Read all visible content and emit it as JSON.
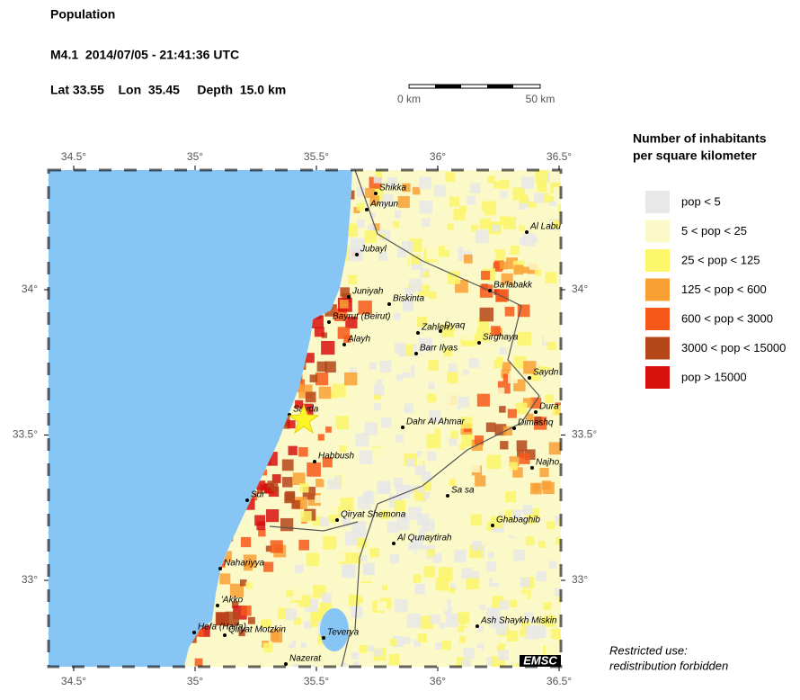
{
  "header": {
    "title": "Population",
    "event": "M4.1  2014/07/05 - 21:41:36 UTC",
    "location": "Lat 33.55    Lon  35.45     Depth  15.0 km"
  },
  "scale_bar": {
    "start": "0 km",
    "end": "50 km"
  },
  "map": {
    "lon_ticks": [
      {
        "value": 34.5,
        "label": "34.5°"
      },
      {
        "value": 35,
        "label": "35°"
      },
      {
        "value": 35.5,
        "label": "35.5°"
      },
      {
        "value": 36,
        "label": "36°"
      },
      {
        "value": 36.5,
        "label": "36.5°"
      }
    ],
    "lat_ticks": [
      {
        "value": 33,
        "label": "33°"
      },
      {
        "value": 33.5,
        "label": "33.5°"
      },
      {
        "value": 34,
        "label": "34°"
      }
    ],
    "cities": [
      "Shikka",
      "Amyun",
      "Jubayl",
      "Juniyah",
      "Biskinta",
      "Bayrut (Beirut)",
      "Alayh",
      "Zahleh",
      "Dyaq",
      "Barr Ilyas",
      "Sirghaya",
      "Ba'labakk",
      "Al Labu",
      "Sayda",
      "Dahr Al Ahmar",
      "Dura",
      "Dimashq",
      "Saydn",
      "Najho",
      "Habbush",
      "Sur",
      "Sa sa",
      "Qiryat Shemona",
      "Ghabaghib",
      "Al Qunaytirah",
      "Nahariyya",
      "'Akko",
      "Hefa (Haifa)",
      "Qiryat Motzkin",
      "Teverya",
      "Ash Shaykh Miskin",
      "Nazerat"
    ],
    "logo": "EMSC"
  },
  "legend": {
    "title": [
      "Number of inhabitants",
      "per square kilometer"
    ],
    "items": [
      {
        "label": "pop < 5",
        "color": "#e8e8e8"
      },
      {
        "label": "5 < pop < 25",
        "color": "#fbf9c8"
      },
      {
        "label": "25 < pop < 125",
        "color": "#fbf66a"
      },
      {
        "label": "125 < pop < 600",
        "color": "#f9a035"
      },
      {
        "label": "600 < pop < 3000",
        "color": "#f6581a"
      },
      {
        "label": "3000 < pop < 15000",
        "color": "#b5471a"
      },
      {
        "label": "pop > 15000",
        "color": "#d8110e"
      }
    ]
  },
  "footer": [
    "Restricted use:",
    "redistribution forbidden"
  ]
}
